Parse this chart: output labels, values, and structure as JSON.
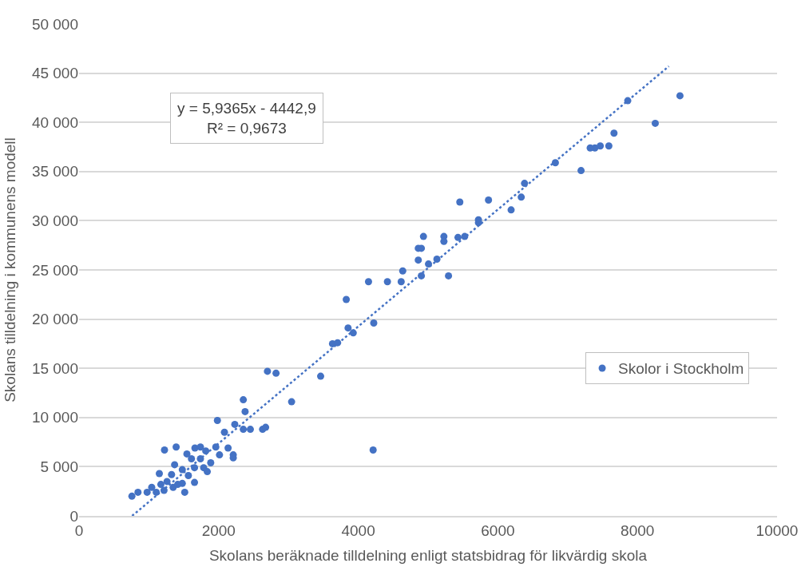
{
  "chart_data": {
    "type": "scatter",
    "xlabel": "Skolans beräknade tilldelning enligt statsbidrag för likvärdig skola",
    "ylabel": "Skolans tilldelning i kommunens modell",
    "annotations": [
      "y = 5,9365x - 4442,9\nR² = 0,9673"
    ],
    "xlim": [
      0,
      10000
    ],
    "xticks": [
      0,
      2000,
      4000,
      6000,
      8000,
      10000
    ],
    "ylim": [
      0,
      50000
    ],
    "yticks": [
      {
        "value": 0,
        "label": "0"
      },
      {
        "value": 5000,
        "label": "5 000"
      },
      {
        "value": 10000,
        "label": "10 000"
      },
      {
        "value": 15000,
        "label": "15 000"
      },
      {
        "value": 20000,
        "label": "20 000"
      },
      {
        "value": 25000,
        "label": "25 000"
      },
      {
        "value": 30000,
        "label": "30 000"
      },
      {
        "value": 35000,
        "label": "35 000"
      },
      {
        "value": 40000,
        "label": "40 000"
      },
      {
        "value": 45000,
        "label": "45 000"
      },
      {
        "value": 50000,
        "label": "50 000"
      }
    ],
    "grid": "y",
    "legend": "right",
    "marker": "circle",
    "series": [
      {
        "name": "Skolor i Stockholm",
        "color": "#4472c4",
        "x": [
          5455,
          5866,
          5722,
          6190,
          6335,
          6382,
          6824,
          7590,
          7390,
          7192,
          7467,
          7323,
          7664,
          7861,
          8255,
          8609,
          5722,
          4934,
          5227,
          5227,
          5429,
          5525,
          4860,
          4904,
          4860,
          5006,
          5127,
          4637,
          4904,
          5293,
          4147,
          4418,
          4615,
          3828,
          3854,
          3928,
          4222,
          3631,
          3704,
          3461,
          2699,
          2822,
          2353,
          3045,
          2379,
          1982,
          2231,
          2083,
          2353,
          2454,
          2629,
          2673,
          1224,
          1391,
          1545,
          1660,
          1739,
          1815,
          1610,
          1739,
          1959,
          2012,
          2135,
          2209,
          2209,
          1886,
          1369,
          1785,
          1837,
          1479,
          1654,
          1150,
          1325,
          1654,
          1514,
          757,
          844,
          975,
          1041,
          1172,
          1260,
          1348,
          1479,
          1566,
          1217,
          1106,
          1413,
          4213
        ],
        "values": [
          31900,
          32100,
          30100,
          31100,
          32400,
          33800,
          35900,
          37600,
          37400,
          35100,
          37600,
          37400,
          38900,
          42200,
          39900,
          42700,
          29800,
          28400,
          28400,
          27900,
          28300,
          28400,
          27200,
          27200,
          26000,
          25600,
          26100,
          24900,
          24400,
          24400,
          23800,
          23800,
          23800,
          22000,
          19100,
          18600,
          19600,
          17500,
          17600,
          14200,
          14700,
          14500,
          11800,
          11600,
          10600,
          9700,
          9300,
          8500,
          8800,
          8800,
          8800,
          9000,
          6700,
          7000,
          6300,
          6900,
          7000,
          6600,
          5800,
          5800,
          7000,
          6200,
          6900,
          6200,
          5900,
          5400,
          5200,
          4900,
          4500,
          4700,
          4900,
          4300,
          4200,
          3400,
          2400,
          2000,
          2400,
          2400,
          2900,
          3200,
          3500,
          2900,
          3300,
          4100,
          2600,
          2400,
          3200,
          6700
        ]
      },
      {
        "type": "line",
        "color": "#4472c4",
        "line_style": "dotted",
        "marker": "none",
        "x": [
          760,
          8450
        ],
        "values": [
          0,
          45700
        ]
      }
    ]
  }
}
